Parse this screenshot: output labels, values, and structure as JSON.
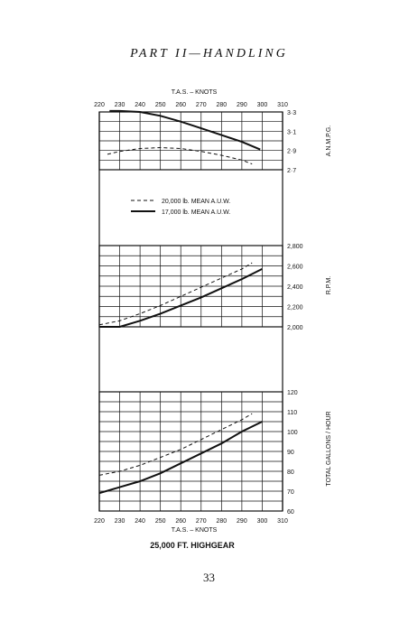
{
  "page": {
    "header": "PART II—HANDLING",
    "page_number": "33"
  },
  "chart_data": {
    "type": "line",
    "caption": "25,000 FT.  HIGHGEAR",
    "x_axis_top_label": "T.A.S. – KNOTS",
    "x_axis_bottom_label": "T.A.S. – KNOTS",
    "x_ticks": [
      220,
      230,
      240,
      250,
      260,
      270,
      280,
      290,
      300,
      310
    ],
    "xlim": [
      220,
      310
    ],
    "legend": [
      {
        "name": "20,000 lb.  MEAN  A.U.W.",
        "style": "dashed"
      },
      {
        "name": "17,000 lb.  MEAN  A.U.W.",
        "style": "solid"
      }
    ],
    "panels": [
      {
        "id": "anmpg",
        "ylabel": "A.N.M.P.G.",
        "ylim": [
          2.7,
          3.3
        ],
        "y_ticks": [
          "3·3",
          "3·1",
          "2·9",
          "2·7"
        ],
        "y_tick_values": [
          3.3,
          3.1,
          2.9,
          2.7
        ],
        "series": [
          {
            "style": "dashed",
            "x": [
              224,
              230,
              240,
              250,
              260,
              270,
              280,
              290,
              295
            ],
            "y": [
              2.86,
              2.89,
              2.92,
              2.93,
              2.92,
              2.89,
              2.85,
              2.8,
              2.76
            ]
          },
          {
            "style": "solid",
            "x": [
              225,
              230,
              240,
              250,
              260,
              270,
              280,
              290,
              299
            ],
            "y": [
              3.31,
              3.31,
              3.3,
              3.26,
              3.2,
              3.13,
              3.06,
              2.99,
              2.91
            ]
          }
        ]
      },
      {
        "id": "rpm",
        "ylabel": "R.P.M.",
        "ylim": [
          2000,
          2800
        ],
        "y_ticks": [
          "2,800",
          "2,600",
          "2,400",
          "2,200",
          "2,000"
        ],
        "y_tick_values": [
          2800,
          2600,
          2400,
          2200,
          2000
        ],
        "series": [
          {
            "style": "dashed",
            "x": [
              220,
              230,
              240,
              250,
              260,
              270,
              280,
              290,
              295
            ],
            "y": [
              2020,
              2060,
              2130,
              2210,
              2300,
              2390,
              2480,
              2570,
              2630
            ]
          },
          {
            "style": "solid",
            "x": [
              220,
              230,
              240,
              250,
              260,
              270,
              280,
              290,
              300
            ],
            "y": [
              2000,
              2000,
              2060,
              2130,
              2210,
              2290,
              2380,
              2470,
              2570
            ]
          }
        ]
      },
      {
        "id": "fuel",
        "ylabel": "TOTAL  GALLONS / HOUR",
        "ylim": [
          60,
          120
        ],
        "y_ticks": [
          "120",
          "110",
          "100",
          "90",
          "80",
          "70",
          "60"
        ],
        "y_tick_values": [
          120,
          110,
          100,
          90,
          80,
          70,
          60
        ],
        "series": [
          {
            "style": "dashed",
            "x": [
              220,
              230,
              240,
              250,
              260,
              270,
              280,
              290,
              295
            ],
            "y": [
              78,
              80,
              83,
              87,
              91,
              96,
              101,
              106,
              109
            ]
          },
          {
            "style": "solid",
            "x": [
              220,
              230,
              240,
              250,
              260,
              270,
              280,
              290,
              300
            ],
            "y": [
              69,
              72,
              75,
              79,
              84,
              89,
              94,
              100,
              105
            ]
          }
        ]
      }
    ]
  }
}
